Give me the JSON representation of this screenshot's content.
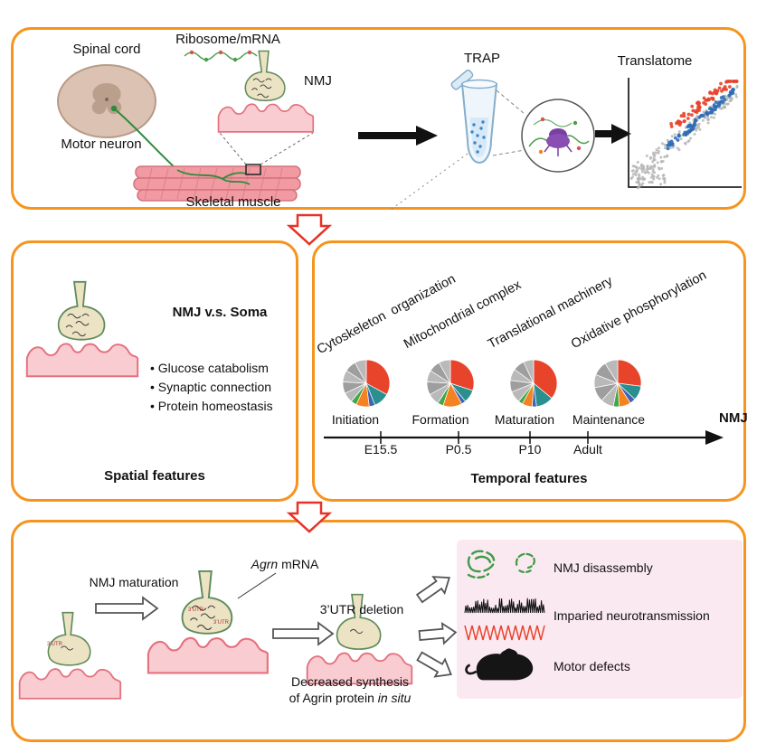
{
  "colors": {
    "panel_border": "#f5941f",
    "red_arrow": "#e63227",
    "pink_box": "#fbe9f2",
    "muscle_pink": "#f9ccd1",
    "muscle_stroke": "#e4717e",
    "bouton_fill": "#ece2c4",
    "bouton_stroke": "#5f8b5a",
    "scatter_gray": "#b3b3b3",
    "scatter_blue": "#2f6db5",
    "scatter_red": "#e8432b",
    "trace_black": "#111111",
    "trace_red": "#e8432b",
    "green_icon": "#3f9b45"
  },
  "top_panel": {
    "spinal_cord": "Spinal cord",
    "ribosome_mrna": "Ribosome/mRNA",
    "nmj": "NMJ",
    "motor_neuron": "Motor neuron",
    "skeletal_muscle": "Skeletal muscle",
    "trap": "TRAP",
    "translatome": "Translatome"
  },
  "spatial_panel": {
    "title": "NMJ v.s. Soma",
    "bullets": [
      "• Glucose catabolism",
      "• Synaptic connection",
      "• Protein homeostasis"
    ],
    "caption": "Spatial features"
  },
  "temporal_panel": {
    "caption": "Temporal features",
    "axis_label": "NMJ",
    "stages": [
      {
        "category": "Cytoskeleton  organization",
        "stage": "Initiation",
        "time": "E15.5",
        "pie": {
          "slices": [
            {
              "color": "#e8432b",
              "value": 33
            },
            {
              "color": "#2a8f8f",
              "value": 11
            },
            {
              "color": "#3f63b0",
              "value": 4
            },
            {
              "color": "#f58220",
              "value": 9
            },
            {
              "color": "#44a647",
              "value": 4
            },
            {
              "color": "#b9b9b9",
              "value": 7
            },
            {
              "color": "#9e9e9e",
              "value": 8
            },
            {
              "color": "#b9b9b9",
              "value": 8
            },
            {
              "color": "#9e9e9e",
              "value": 8
            },
            {
              "color": "#b9b9b9",
              "value": 8
            }
          ]
        }
      },
      {
        "category": "Mitochondrial complex",
        "stage": "Formation",
        "time": "P0.5",
        "pie": {
          "slices": [
            {
              "color": "#e8432b",
              "value": 30
            },
            {
              "color": "#2a8f8f",
              "value": 9
            },
            {
              "color": "#3f63b0",
              "value": 3
            },
            {
              "color": "#f58220",
              "value": 13
            },
            {
              "color": "#44a647",
              "value": 4
            },
            {
              "color": "#b9b9b9",
              "value": 8
            },
            {
              "color": "#9e9e9e",
              "value": 9
            },
            {
              "color": "#b9b9b9",
              "value": 8
            },
            {
              "color": "#9e9e9e",
              "value": 8
            },
            {
              "color": "#b9b9b9",
              "value": 8
            }
          ]
        }
      },
      {
        "category": "Translational machinery",
        "stage": "Maturation",
        "time": "P10",
        "pie": {
          "slices": [
            {
              "color": "#e8432b",
              "value": 36
            },
            {
              "color": "#2a8f8f",
              "value": 12
            },
            {
              "color": "#3f63b0",
              "value": 3
            },
            {
              "color": "#f58220",
              "value": 7
            },
            {
              "color": "#44a647",
              "value": 3
            },
            {
              "color": "#b9b9b9",
              "value": 8
            },
            {
              "color": "#9e9e9e",
              "value": 8
            },
            {
              "color": "#b9b9b9",
              "value": 8
            },
            {
              "color": "#9e9e9e",
              "value": 8
            },
            {
              "color": "#b9b9b9",
              "value": 7
            }
          ]
        }
      },
      {
        "category": "Oxidative phosphorylation",
        "stage": "Maintenance",
        "time": "Adult",
        "pie": {
          "slices": [
            {
              "color": "#e8432b",
              "value": 27
            },
            {
              "color": "#2a8f8f",
              "value": 10
            },
            {
              "color": "#3f63b0",
              "value": 4
            },
            {
              "color": "#f58220",
              "value": 8
            },
            {
              "color": "#44a647",
              "value": 4
            },
            {
              "color": "#b9b9b9",
              "value": 9
            },
            {
              "color": "#9e9e9e",
              "value": 10
            },
            {
              "color": "#b9b9b9",
              "value": 9
            },
            {
              "color": "#9e9e9e",
              "value": 10
            },
            {
              "color": "#b9b9b9",
              "value": 9
            }
          ]
        }
      }
    ]
  },
  "bottom_panel": {
    "nmj_maturation": "NMJ maturation",
    "agrn_gene": "Agrn",
    "mrna_word": " mRNA",
    "utr_deletion": "3’UTR deletion",
    "utr_tag": "3’UTR",
    "decreased_line1": "Decreased synthesis",
    "decreased_prefix": "of Agrin protein ",
    "in_situ": "in situ",
    "outcomes": [
      "NMJ disassembly",
      "Imparied neurotransmission",
      "Motor defects"
    ]
  }
}
